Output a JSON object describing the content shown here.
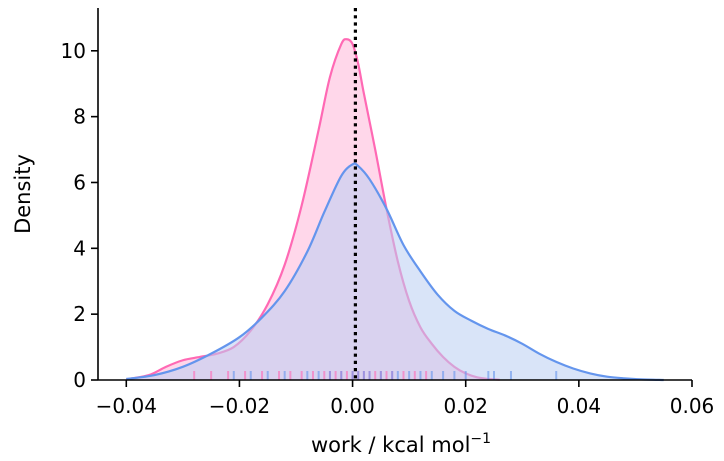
{
  "chart_data": {
    "type": "area",
    "title": "",
    "xlabel": "work / kcal mol",
    "xlabel_superscript": "−1",
    "ylabel": "Density",
    "xlim": [
      -0.045,
      0.06
    ],
    "ylim": [
      0,
      11.3
    ],
    "x_ticks": [
      -0.04,
      -0.02,
      0.0,
      0.02,
      0.04,
      0.06
    ],
    "x_tick_labels": [
      "−0.04",
      "−0.02",
      "0.00",
      "0.02",
      "0.04",
      "0.06"
    ],
    "y_ticks": [
      0,
      2,
      4,
      6,
      8,
      10
    ],
    "y_tick_labels": [
      "0",
      "2",
      "4",
      "6",
      "8",
      "10"
    ],
    "grid": false,
    "legend": "none",
    "reference_line": {
      "x": 0.0005,
      "style": "dotted",
      "color": "#000000"
    },
    "series": [
      {
        "color": "#ff69b4",
        "fill": "#ffb6d9",
        "x": [
          -0.04,
          -0.036,
          -0.033,
          -0.03,
          -0.027,
          -0.024,
          -0.021,
          -0.018,
          -0.015,
          -0.012,
          -0.009,
          -0.006,
          -0.004,
          -0.002,
          -0.001,
          0.0,
          0.001,
          0.002,
          0.004,
          0.006,
          0.008,
          0.01,
          0.012,
          0.014,
          0.016,
          0.018,
          0.02,
          0.022,
          0.024,
          0.026
        ],
        "y": [
          0.02,
          0.15,
          0.4,
          0.6,
          0.7,
          0.8,
          1.0,
          1.5,
          2.3,
          3.5,
          5.3,
          7.6,
          9.2,
          10.2,
          10.35,
          10.2,
          9.6,
          8.7,
          7.0,
          5.2,
          3.6,
          2.4,
          1.6,
          1.1,
          0.7,
          0.4,
          0.2,
          0.08,
          0.03,
          0.01
        ],
        "rug": [
          -0.028,
          -0.025,
          -0.022,
          -0.019,
          -0.016,
          -0.013,
          -0.011,
          -0.009,
          -0.007,
          -0.005,
          -0.004,
          -0.003,
          -0.002,
          -0.001,
          0.0,
          0.001,
          0.002,
          0.003,
          0.004,
          0.005,
          0.006,
          0.007,
          0.009,
          0.011,
          0.013
        ]
      },
      {
        "color": "#6495ed",
        "fill": "#b9cdf3",
        "x": [
          -0.04,
          -0.035,
          -0.03,
          -0.025,
          -0.02,
          -0.016,
          -0.012,
          -0.008,
          -0.005,
          -0.002,
          0.0,
          0.001,
          0.003,
          0.006,
          0.009,
          0.012,
          0.015,
          0.018,
          0.021,
          0.024,
          0.027,
          0.03,
          0.033,
          0.036,
          0.039,
          0.042,
          0.045,
          0.048,
          0.051,
          0.055
        ],
        "y": [
          0.03,
          0.15,
          0.4,
          0.8,
          1.3,
          1.9,
          2.7,
          3.9,
          5.1,
          6.2,
          6.55,
          6.5,
          6.1,
          5.2,
          4.1,
          3.3,
          2.6,
          2.1,
          1.8,
          1.55,
          1.35,
          1.1,
          0.8,
          0.55,
          0.35,
          0.2,
          0.1,
          0.05,
          0.02,
          0.0
        ],
        "rug": [
          -0.021,
          -0.018,
          -0.015,
          -0.012,
          -0.008,
          -0.006,
          -0.004,
          -0.002,
          0.0,
          0.001,
          0.002,
          0.003,
          0.005,
          0.007,
          0.008,
          0.01,
          0.012,
          0.014,
          0.016,
          0.018,
          0.02,
          0.024,
          0.025,
          0.028,
          0.036
        ]
      }
    ]
  }
}
